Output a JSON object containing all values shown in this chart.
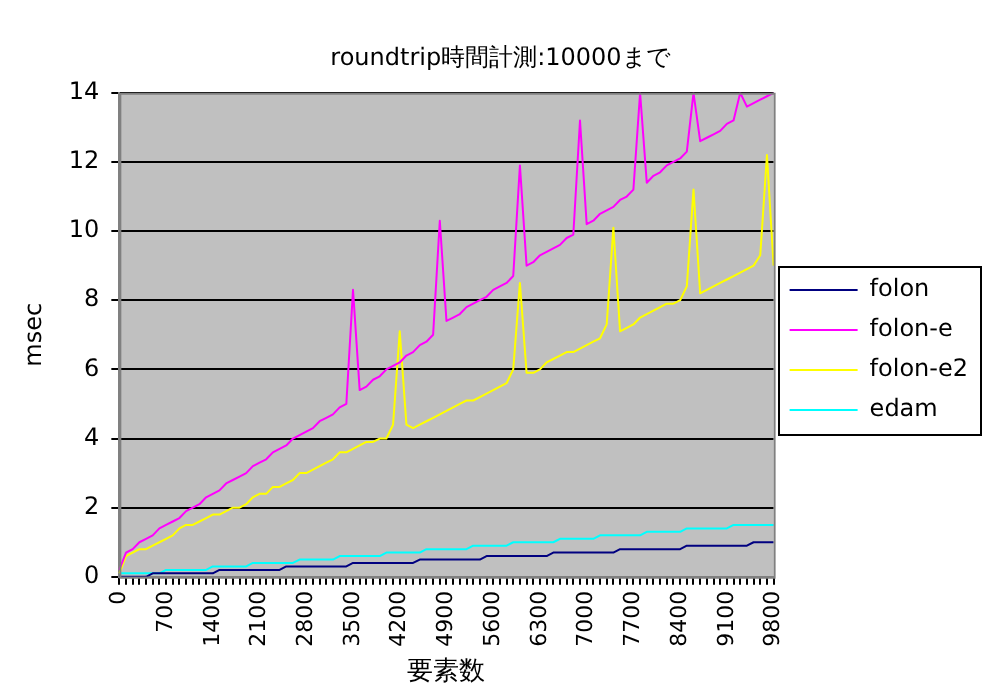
{
  "chart_data": {
    "type": "line",
    "title": "roundtrip時間計測:10000まで",
    "xlabel": "要素数",
    "ylabel": "msec",
    "categories": [
      "0",
      null,
      null,
      null,
      null,
      null,
      null,
      "700",
      null,
      null,
      null,
      null,
      null,
      null,
      "1400",
      null,
      null,
      null,
      null,
      null,
      null,
      "2100",
      null,
      null,
      null,
      null,
      null,
      null,
      "2800",
      null,
      null,
      null,
      null,
      null,
      null,
      "3500",
      null,
      null,
      null,
      null,
      null,
      null,
      "4200",
      null,
      null,
      null,
      null,
      null,
      null,
      "4900",
      null,
      null,
      null,
      null,
      null,
      null,
      "5600",
      null,
      null,
      null,
      null,
      null,
      null,
      "6300",
      null,
      null,
      null,
      null,
      null,
      null,
      "7000",
      null,
      null,
      null,
      null,
      null,
      null,
      "7700",
      null,
      null,
      null,
      null,
      null,
      null,
      "8400",
      null,
      null,
      null,
      null,
      null,
      null,
      "9100",
      null,
      null,
      null,
      null,
      null,
      null,
      "9800"
    ],
    "series": [
      {
        "name": "folon",
        "color": "#000080",
        "values": [
          0.0,
          0.0,
          0.0,
          0.0,
          0.0,
          0.1,
          0.1,
          0.1,
          0.1,
          0.1,
          0.1,
          0.1,
          0.1,
          0.1,
          0.1,
          0.2,
          0.2,
          0.2,
          0.2,
          0.2,
          0.2,
          0.2,
          0.2,
          0.2,
          0.2,
          0.3,
          0.3,
          0.3,
          0.3,
          0.3,
          0.3,
          0.3,
          0.3,
          0.3,
          0.3,
          0.4,
          0.4,
          0.4,
          0.4,
          0.4,
          0.4,
          0.4,
          0.4,
          0.4,
          0.4,
          0.5,
          0.5,
          0.5,
          0.5,
          0.5,
          0.5,
          0.5,
          0.5,
          0.5,
          0.5,
          0.6,
          0.6,
          0.6,
          0.6,
          0.6,
          0.6,
          0.6,
          0.6,
          0.6,
          0.6,
          0.7,
          0.7,
          0.7,
          0.7,
          0.7,
          0.7,
          0.7,
          0.7,
          0.7,
          0.7,
          0.8,
          0.8,
          0.8,
          0.8,
          0.8,
          0.8,
          0.8,
          0.8,
          0.8,
          0.8,
          0.9,
          0.9,
          0.9,
          0.9,
          0.9,
          0.9,
          0.9,
          0.9,
          0.9,
          0.9,
          1.0,
          1.0,
          1.0,
          1.0
        ]
      },
      {
        "name": "folon-e",
        "color": "#ff00ff",
        "values": [
          0.2,
          0.7,
          0.8,
          1.0,
          1.1,
          1.2,
          1.4,
          1.5,
          1.6,
          1.7,
          1.9,
          2.0,
          2.1,
          2.3,
          2.4,
          2.5,
          2.7,
          2.8,
          2.9,
          3.0,
          3.2,
          3.3,
          3.4,
          3.6,
          3.7,
          3.8,
          4.0,
          4.1,
          4.2,
          4.3,
          4.5,
          4.6,
          4.7,
          4.9,
          5.0,
          8.3,
          5.4,
          5.5,
          5.7,
          5.8,
          6.0,
          6.1,
          6.2,
          6.4,
          6.5,
          6.7,
          6.8,
          7.0,
          10.3,
          7.4,
          7.5,
          7.6,
          7.8,
          7.9,
          8.0,
          8.1,
          8.3,
          8.4,
          8.5,
          8.7,
          11.9,
          9.0,
          9.1,
          9.3,
          9.4,
          9.5,
          9.6,
          9.8,
          9.9,
          13.2,
          10.2,
          10.3,
          10.5,
          10.6,
          10.7,
          10.9,
          11.0,
          11.2,
          14,
          11.4,
          11.6,
          11.7,
          11.9,
          12.0,
          12.1,
          12.3,
          14,
          12.6,
          12.7,
          12.8,
          12.9,
          13.1,
          13.2,
          14,
          13.6,
          13.7,
          13.8,
          13.9,
          14.0
        ]
      },
      {
        "name": "folon-e2",
        "color": "#ffff00",
        "values": [
          0.1,
          0.6,
          0.7,
          0.8,
          0.8,
          0.9,
          1.0,
          1.1,
          1.2,
          1.4,
          1.5,
          1.5,
          1.6,
          1.7,
          1.8,
          1.8,
          1.9,
          2.0,
          2.0,
          2.1,
          2.3,
          2.4,
          2.4,
          2.6,
          2.6,
          2.7,
          2.8,
          3.0,
          3.0,
          3.1,
          3.2,
          3.3,
          3.4,
          3.6,
          3.6,
          3.7,
          3.8,
          3.9,
          3.9,
          4.0,
          4.0,
          4.4,
          7.1,
          4.4,
          4.3,
          4.4,
          4.5,
          4.6,
          4.7,
          4.8,
          4.9,
          5.0,
          5.1,
          5.1,
          5.2,
          5.3,
          5.4,
          5.5,
          5.6,
          6.0,
          8.5,
          5.9,
          5.9,
          6.0,
          6.2,
          6.3,
          6.4,
          6.5,
          6.5,
          6.6,
          6.7,
          6.8,
          6.9,
          7.3,
          10.1,
          7.1,
          7.2,
          7.3,
          7.5,
          7.6,
          7.7,
          7.8,
          7.9,
          7.9,
          8.0,
          8.4,
          11.2,
          8.2,
          8.3,
          8.4,
          8.5,
          8.6,
          8.7,
          8.8,
          8.9,
          9.0,
          9.3,
          12.2,
          9.0
        ]
      },
      {
        "name": "edam",
        "color": "#00ffff",
        "values": [
          0.1,
          0.1,
          0.1,
          0.1,
          0.1,
          0.1,
          0.1,
          0.2,
          0.2,
          0.2,
          0.2,
          0.2,
          0.2,
          0.2,
          0.3,
          0.3,
          0.3,
          0.3,
          0.3,
          0.3,
          0.4,
          0.4,
          0.4,
          0.4,
          0.4,
          0.4,
          0.4,
          0.5,
          0.5,
          0.5,
          0.5,
          0.5,
          0.5,
          0.6,
          0.6,
          0.6,
          0.6,
          0.6,
          0.6,
          0.6,
          0.7,
          0.7,
          0.7,
          0.7,
          0.7,
          0.7,
          0.8,
          0.8,
          0.8,
          0.8,
          0.8,
          0.8,
          0.8,
          0.9,
          0.9,
          0.9,
          0.9,
          0.9,
          0.9,
          1.0,
          1.0,
          1.0,
          1.0,
          1.0,
          1.0,
          1.0,
          1.1,
          1.1,
          1.1,
          1.1,
          1.1,
          1.1,
          1.2,
          1.2,
          1.2,
          1.2,
          1.2,
          1.2,
          1.2,
          1.3,
          1.3,
          1.3,
          1.3,
          1.3,
          1.3,
          1.4,
          1.4,
          1.4,
          1.4,
          1.4,
          1.4,
          1.4,
          1.5,
          1.5,
          1.5,
          1.5,
          1.5,
          1.5,
          1.5
        ]
      }
    ],
    "ylim": [
      0,
      14
    ],
    "yticks": [
      0,
      2,
      4,
      6,
      8,
      10,
      12,
      14
    ],
    "grid": "y",
    "legend": "right",
    "marker": "none",
    "line_style": "solid"
  }
}
